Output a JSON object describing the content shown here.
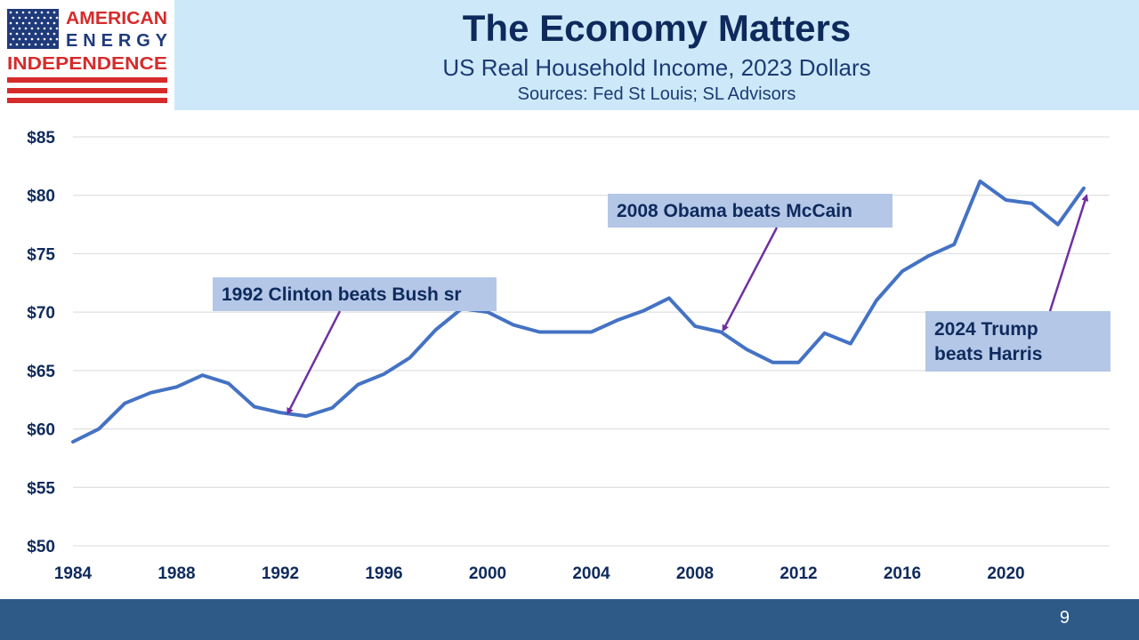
{
  "logo": {
    "line1": "AMERICAN",
    "line2": "ENERGY",
    "line3": "INDEPENDENCE",
    "flag_blue": "#1f3a7a",
    "flag_red": "#d62b2b"
  },
  "header": {
    "title": "The Economy Matters",
    "subtitle": "US Real Household Income, 2023 Dollars",
    "sources": "Sources: Fed St Louis; SL Advisors"
  },
  "footer": {
    "page_number": "9"
  },
  "chart_data": {
    "type": "line",
    "x": [
      1984,
      1985,
      1986,
      1987,
      1988,
      1989,
      1990,
      1991,
      1992,
      1993,
      1994,
      1995,
      1996,
      1997,
      1998,
      1999,
      2000,
      2001,
      2002,
      2003,
      2004,
      2005,
      2006,
      2007,
      2008,
      2009,
      2010,
      2011,
      2012,
      2013,
      2014,
      2015,
      2016,
      2017,
      2018,
      2019,
      2020,
      2021,
      2022,
      2023
    ],
    "series": [
      {
        "values": [
          58.9,
          60.0,
          62.2,
          63.1,
          63.6,
          64.6,
          63.9,
          61.9,
          61.4,
          61.1,
          61.8,
          63.8,
          64.7,
          66.1,
          68.5,
          70.3,
          70.0,
          68.9,
          68.3,
          68.3,
          68.3,
          69.3,
          70.1,
          71.2,
          68.8,
          68.3,
          66.8,
          65.7,
          65.7,
          68.2,
          67.3,
          71.0,
          73.5,
          74.8,
          75.8,
          81.2,
          79.6,
          79.3,
          77.5,
          80.6
        ],
        "color": "#4472c4"
      }
    ],
    "ylim": [
      50,
      85
    ],
    "xlim": [
      1984,
      2024
    ],
    "y_ticks": [
      "$50",
      "$55",
      "$60",
      "$65",
      "$70",
      "$75",
      "$80",
      "$85"
    ],
    "y_tick_values": [
      50,
      55,
      60,
      65,
      70,
      75,
      80,
      85
    ],
    "x_ticks": [
      "1984",
      "1988",
      "1992",
      "1996",
      "2000",
      "2004",
      "2008",
      "2012",
      "2016",
      "2020"
    ],
    "x_tick_values": [
      1984,
      1988,
      1992,
      1996,
      2000,
      2004,
      2008,
      2012,
      2016,
      2020
    ],
    "grid": true,
    "annotations": [
      {
        "lines": [
          "1992 Clinton beats Bush sr"
        ],
        "arrow_to": [
          1992.3,
          61.4
        ]
      },
      {
        "lines": [
          "2008 Obama beats McCain"
        ],
        "arrow_to": [
          2009.1,
          68.5
        ]
      },
      {
        "lines": [
          "2024 Trump",
          "beats Harris"
        ],
        "arrow_to": [
          2023.1,
          79.9
        ]
      }
    ],
    "annotation_color": "#b4c7e7",
    "arrow_color": "#7030a0"
  }
}
